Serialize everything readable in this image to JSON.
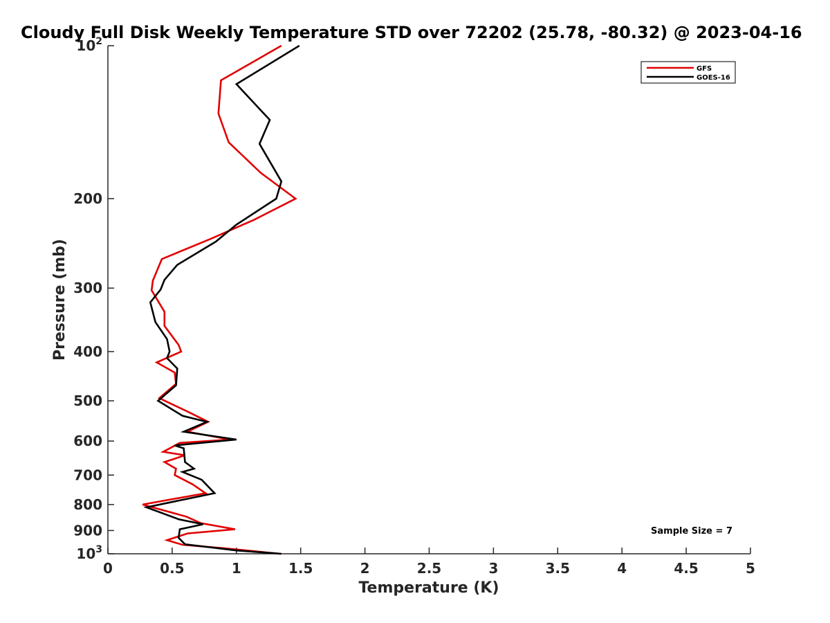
{
  "chart_data": {
    "type": "line",
    "title": "Cloudy Full Disk Weekly Temperature STD over 72202 (25.78, -80.32) @ 2023-04-16",
    "xlabel": "Temperature (K)",
    "ylabel": "Pressure (mb)",
    "xlim": [
      0,
      5
    ],
    "ylim": [
      100,
      1000
    ],
    "yscale": "log",
    "y_reversed": true,
    "x_ticks": [
      "0",
      "0.5",
      "1",
      "1.5",
      "2",
      "2.5",
      "3",
      "3.5",
      "4",
      "4.5",
      "5"
    ],
    "y_ticks": [
      {
        "value": 100,
        "base": "10",
        "exp": "2"
      },
      {
        "value": 200,
        "label": "200"
      },
      {
        "value": 300,
        "label": "300"
      },
      {
        "value": 400,
        "label": "400"
      },
      {
        "value": 500,
        "label": "500"
      },
      {
        "value": 600,
        "label": "600"
      },
      {
        "value": 700,
        "label": "700"
      },
      {
        "value": 800,
        "label": "800"
      },
      {
        "value": 900,
        "label": "900"
      },
      {
        "value": 1000,
        "base": "10",
        "exp": "3"
      }
    ],
    "grid": false,
    "legend_position": "top-right",
    "annotation": "Sample Size = 7",
    "series": [
      {
        "name": "GFS",
        "color": "#e00000",
        "points": [
          [
            1.35,
            100
          ],
          [
            0.88,
            117
          ],
          [
            0.86,
            136
          ],
          [
            0.94,
            155
          ],
          [
            1.19,
            178
          ],
          [
            1.46,
            200
          ],
          [
            1.14,
            220
          ],
          [
            0.8,
            240
          ],
          [
            0.42,
            263
          ],
          [
            0.35,
            290
          ],
          [
            0.34,
            303
          ],
          [
            0.44,
            334
          ],
          [
            0.44,
            356
          ],
          [
            0.55,
            388
          ],
          [
            0.57,
            400
          ],
          [
            0.38,
            420
          ],
          [
            0.52,
            440
          ],
          [
            0.53,
            463
          ],
          [
            0.4,
            494
          ],
          [
            0.62,
            525
          ],
          [
            0.78,
            550
          ],
          [
            0.62,
            575
          ],
          [
            0.95,
            596
          ],
          [
            0.56,
            605
          ],
          [
            0.43,
            630
          ],
          [
            0.6,
            640
          ],
          [
            0.44,
            660
          ],
          [
            0.53,
            680
          ],
          [
            0.52,
            700
          ],
          [
            0.66,
            730
          ],
          [
            0.76,
            760
          ],
          [
            0.27,
            800
          ],
          [
            0.61,
            845
          ],
          [
            0.72,
            870
          ],
          [
            0.99,
            895
          ],
          [
            0.62,
            912
          ],
          [
            0.46,
            940
          ],
          [
            0.58,
            960
          ],
          [
            0.9,
            975
          ],
          [
            1.34,
            1000
          ]
        ]
      },
      {
        "name": "GOES-16",
        "color": "#000000",
        "points": [
          [
            1.49,
            100
          ],
          [
            1.0,
            119
          ],
          [
            1.26,
            140
          ],
          [
            1.18,
            156
          ],
          [
            1.35,
            185
          ],
          [
            1.31,
            200
          ],
          [
            1.0,
            225
          ],
          [
            0.84,
            243
          ],
          [
            0.54,
            270
          ],
          [
            0.44,
            289
          ],
          [
            0.41,
            302
          ],
          [
            0.33,
            320
          ],
          [
            0.37,
            350
          ],
          [
            0.46,
            378
          ],
          [
            0.48,
            400
          ],
          [
            0.46,
            412
          ],
          [
            0.54,
            432
          ],
          [
            0.53,
            466
          ],
          [
            0.39,
            500
          ],
          [
            0.58,
            535
          ],
          [
            0.77,
            550
          ],
          [
            0.59,
            575
          ],
          [
            1.0,
            596
          ],
          [
            0.52,
            612
          ],
          [
            0.59,
            620
          ],
          [
            0.6,
            660
          ],
          [
            0.67,
            680
          ],
          [
            0.58,
            690
          ],
          [
            0.73,
            715
          ],
          [
            0.83,
            760
          ],
          [
            0.3,
            810
          ],
          [
            0.55,
            855
          ],
          [
            0.74,
            875
          ],
          [
            0.56,
            895
          ],
          [
            0.55,
            930
          ],
          [
            0.6,
            958
          ],
          [
            1.0,
            985
          ],
          [
            1.35,
            1000
          ]
        ]
      }
    ]
  }
}
